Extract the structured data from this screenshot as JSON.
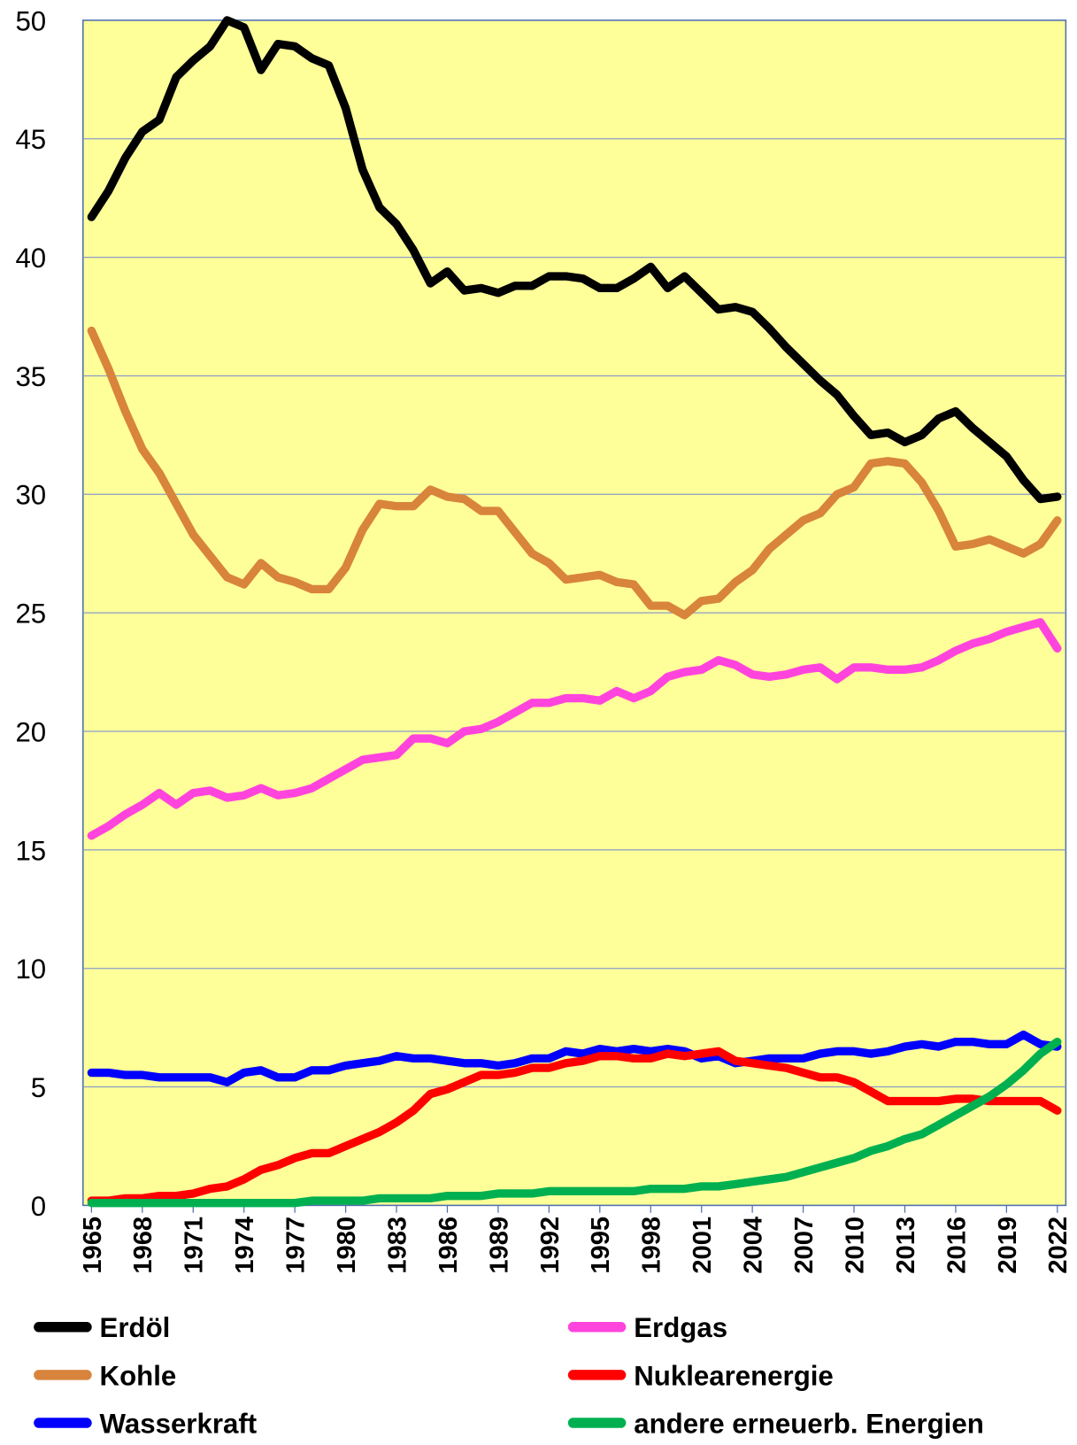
{
  "chart_data": {
    "type": "line",
    "x": [
      1965,
      1966,
      1967,
      1968,
      1969,
      1970,
      1971,
      1972,
      1973,
      1974,
      1975,
      1976,
      1977,
      1978,
      1979,
      1980,
      1981,
      1982,
      1983,
      1984,
      1985,
      1986,
      1987,
      1988,
      1989,
      1990,
      1991,
      1992,
      1993,
      1994,
      1995,
      1996,
      1997,
      1998,
      1999,
      2000,
      2001,
      2002,
      2003,
      2004,
      2005,
      2006,
      2007,
      2008,
      2009,
      2010,
      2011,
      2012,
      2013,
      2014,
      2015,
      2016,
      2017,
      2018,
      2019,
      2020,
      2021,
      2022
    ],
    "xlim": [
      1964.5,
      2022.5
    ],
    "xticks": [
      1965,
      1968,
      1971,
      1974,
      1977,
      1980,
      1983,
      1986,
      1989,
      1992,
      1995,
      1998,
      2001,
      2004,
      2007,
      2010,
      2013,
      2016,
      2019,
      2022
    ],
    "ylim": [
      0,
      50
    ],
    "yticks": [
      0,
      5,
      10,
      15,
      20,
      25,
      30,
      35,
      40,
      45,
      50
    ],
    "grid": true,
    "legend": "bottom",
    "series": [
      {
        "name": "Erdöl",
        "color": "#000000",
        "values": [
          41.7,
          42.8,
          44.2,
          45.3,
          45.8,
          47.6,
          48.3,
          48.9,
          50.0,
          49.7,
          47.9,
          49.0,
          48.9,
          48.4,
          48.1,
          46.3,
          43.7,
          42.1,
          41.4,
          40.3,
          38.9,
          39.4,
          38.6,
          38.7,
          38.5,
          38.8,
          38.8,
          39.2,
          39.2,
          39.1,
          38.7,
          38.7,
          39.1,
          39.6,
          38.7,
          39.2,
          38.5,
          37.8,
          37.9,
          37.7,
          37.0,
          36.2,
          35.5,
          34.8,
          34.2,
          33.3,
          32.5,
          32.6,
          32.2,
          32.5,
          33.2,
          33.5,
          32.8,
          32.2,
          31.6,
          30.6,
          29.8,
          29.9
        ]
      },
      {
        "name": "Erdgas",
        "color": "#ff44dd",
        "values": [
          15.6,
          16.0,
          16.5,
          16.9,
          17.4,
          16.9,
          17.4,
          17.5,
          17.2,
          17.3,
          17.6,
          17.3,
          17.4,
          17.6,
          18.0,
          18.4,
          18.8,
          18.9,
          19.0,
          19.7,
          19.7,
          19.5,
          20.0,
          20.1,
          20.4,
          20.8,
          21.2,
          21.2,
          21.4,
          21.4,
          21.3,
          21.7,
          21.4,
          21.7,
          22.3,
          22.5,
          22.6,
          23.0,
          22.8,
          22.4,
          22.3,
          22.4,
          22.6,
          22.7,
          22.2,
          22.7,
          22.7,
          22.6,
          22.6,
          22.7,
          23.0,
          23.4,
          23.7,
          23.9,
          24.2,
          24.4,
          24.6,
          23.5
        ]
      },
      {
        "name": "Kohle",
        "color": "#d8843c",
        "values": [
          36.9,
          35.3,
          33.5,
          31.9,
          30.9,
          29.6,
          28.3,
          27.4,
          26.5,
          26.2,
          27.1,
          26.5,
          26.3,
          26.0,
          26.0,
          26.9,
          28.5,
          29.6,
          29.5,
          29.5,
          30.2,
          29.9,
          29.8,
          29.3,
          29.3,
          28.4,
          27.5,
          27.1,
          26.4,
          26.5,
          26.6,
          26.3,
          26.2,
          25.3,
          25.3,
          24.9,
          25.5,
          25.6,
          26.3,
          26.8,
          27.7,
          28.3,
          28.9,
          29.2,
          30.0,
          30.3,
          31.3,
          31.4,
          31.3,
          30.5,
          29.3,
          27.8,
          27.9,
          28.1,
          27.8,
          27.5,
          27.9,
          28.9
        ]
      },
      {
        "name": "Nuklearenergie",
        "color": "#ff0000",
        "values": [
          0.2,
          0.2,
          0.3,
          0.3,
          0.4,
          0.4,
          0.5,
          0.7,
          0.8,
          1.1,
          1.5,
          1.7,
          2.0,
          2.2,
          2.2,
          2.5,
          2.8,
          3.1,
          3.5,
          4.0,
          4.7,
          4.9,
          5.2,
          5.5,
          5.5,
          5.6,
          5.8,
          5.8,
          6.0,
          6.1,
          6.3,
          6.3,
          6.2,
          6.2,
          6.4,
          6.3,
          6.4,
          6.5,
          6.1,
          6.0,
          5.9,
          5.8,
          5.6,
          5.4,
          5.4,
          5.2,
          4.8,
          4.4,
          4.4,
          4.4,
          4.4,
          4.5,
          4.5,
          4.4,
          4.4,
          4.4,
          4.4,
          4.0
        ]
      },
      {
        "name": "Wasserkraft",
        "color": "#0000ff",
        "values": [
          5.6,
          5.6,
          5.5,
          5.5,
          5.4,
          5.4,
          5.4,
          5.4,
          5.2,
          5.6,
          5.7,
          5.4,
          5.4,
          5.7,
          5.7,
          5.9,
          6.0,
          6.1,
          6.3,
          6.2,
          6.2,
          6.1,
          6.0,
          6.0,
          5.9,
          6.0,
          6.2,
          6.2,
          6.5,
          6.4,
          6.6,
          6.5,
          6.6,
          6.5,
          6.6,
          6.5,
          6.2,
          6.3,
          6.0,
          6.1,
          6.2,
          6.2,
          6.2,
          6.4,
          6.5,
          6.5,
          6.4,
          6.5,
          6.7,
          6.8,
          6.7,
          6.9,
          6.9,
          6.8,
          6.8,
          7.2,
          6.8,
          6.7
        ]
      },
      {
        "name": "andere erneuerb. Energien",
        "color": "#00b050",
        "values": [
          0.1,
          0.1,
          0.1,
          0.1,
          0.1,
          0.1,
          0.1,
          0.1,
          0.1,
          0.1,
          0.1,
          0.1,
          0.1,
          0.2,
          0.2,
          0.2,
          0.2,
          0.3,
          0.3,
          0.3,
          0.3,
          0.4,
          0.4,
          0.4,
          0.5,
          0.5,
          0.5,
          0.6,
          0.6,
          0.6,
          0.6,
          0.6,
          0.6,
          0.7,
          0.7,
          0.7,
          0.8,
          0.8,
          0.9,
          1.0,
          1.1,
          1.2,
          1.4,
          1.6,
          1.8,
          2.0,
          2.3,
          2.5,
          2.8,
          3.0,
          3.4,
          3.8,
          4.2,
          4.6,
          5.1,
          5.7,
          6.4,
          6.9
        ]
      }
    ]
  }
}
